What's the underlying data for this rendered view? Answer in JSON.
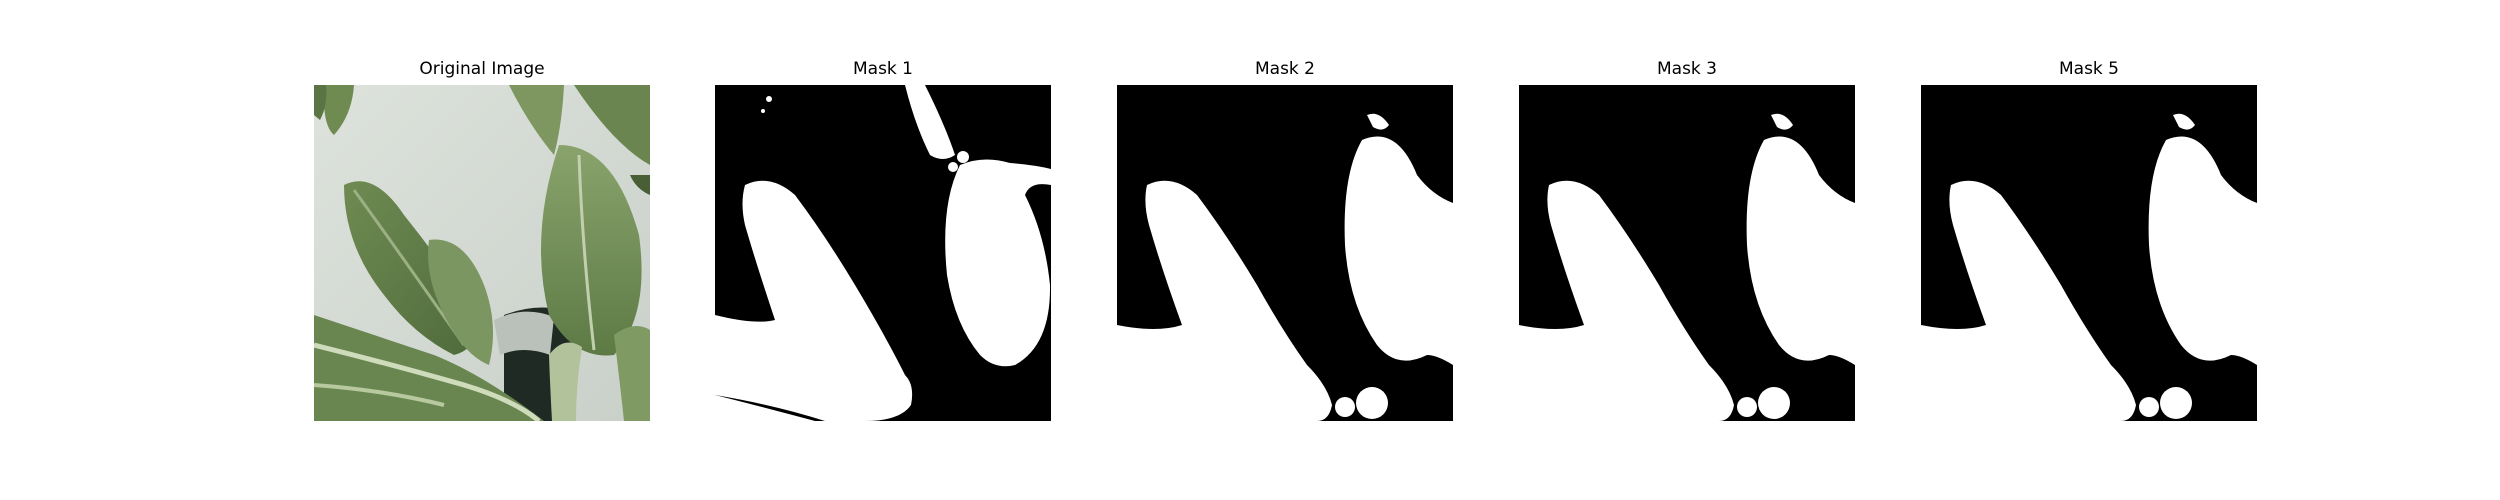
{
  "panels": [
    {
      "title": "Original Image",
      "kind": "photo",
      "subject": "green leafy plant (bok choy) against white wall"
    },
    {
      "title": "Mask 1",
      "kind": "mask",
      "variant": 1
    },
    {
      "title": "Mask 2",
      "kind": "mask",
      "variant": 2
    },
    {
      "title": "Mask 3",
      "kind": "mask",
      "variant": 3
    },
    {
      "title": "Mask 5",
      "kind": "mask",
      "variant": 5
    }
  ],
  "colors": {
    "background": "#ffffff",
    "mask_background": "#000000",
    "mask_foreground": "#ffffff",
    "leaf_dark": "#4f6a3b",
    "leaf_mid": "#7d9661",
    "leaf_light": "#a7bb8c",
    "wall": "#e1e6e1"
  }
}
